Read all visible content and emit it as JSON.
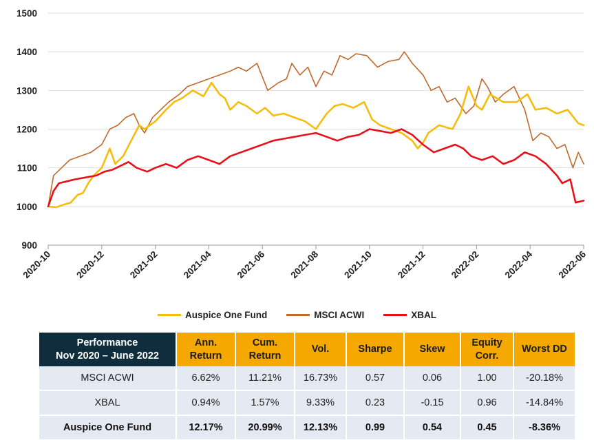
{
  "chart_data": {
    "type": "line",
    "x_labels": [
      "2020-10",
      "2020-12",
      "2021-02",
      "2021-04",
      "2021-06",
      "2021-08",
      "2021-10",
      "2021-12",
      "2022-02",
      "2022-04",
      "2022-06"
    ],
    "ylim": [
      900,
      1500
    ],
    "y_ticks": [
      900,
      1000,
      1100,
      1200,
      1300,
      1400,
      1500
    ],
    "grid": "horizontal",
    "legend_position": "bottom",
    "series": [
      {
        "name": "Auspice One Fund",
        "color": "#f5bd0e",
        "x": [
          0,
          0.15,
          0.3,
          0.42,
          0.55,
          0.65,
          0.75,
          0.85,
          1.0,
          1.15,
          1.25,
          1.4,
          1.55,
          1.7,
          1.8,
          2.0,
          2.2,
          2.35,
          2.5,
          2.7,
          2.9,
          3.05,
          3.2,
          3.3,
          3.4,
          3.55,
          3.7,
          3.9,
          4.05,
          4.2,
          4.4,
          4.6,
          4.8,
          5.0,
          5.2,
          5.35,
          5.5,
          5.7,
          5.9,
          6.05,
          6.2,
          6.4,
          6.6,
          6.8,
          6.9,
          7.0,
          7.1,
          7.3,
          7.55,
          7.7,
          7.85,
          8.0,
          8.1,
          8.25,
          8.5,
          8.75,
          8.95,
          9.1,
          9.3,
          9.5,
          9.7,
          9.9,
          10.0
        ],
        "y": [
          1000,
          998,
          1005,
          1010,
          1030,
          1035,
          1060,
          1080,
          1100,
          1150,
          1110,
          1130,
          1170,
          1210,
          1200,
          1220,
          1250,
          1270,
          1280,
          1300,
          1285,
          1320,
          1290,
          1280,
          1250,
          1270,
          1260,
          1240,
          1255,
          1235,
          1240,
          1230,
          1220,
          1200,
          1240,
          1260,
          1265,
          1255,
          1270,
          1225,
          1210,
          1200,
          1190,
          1170,
          1150,
          1165,
          1190,
          1210,
          1200,
          1240,
          1310,
          1260,
          1250,
          1290,
          1270,
          1270,
          1290,
          1250,
          1255,
          1240,
          1250,
          1215,
          1210
        ]
      },
      {
        "name": "MSCI ACWI",
        "color": "#c0692a",
        "x": [
          0,
          0.1,
          0.25,
          0.4,
          0.6,
          0.8,
          1.0,
          1.15,
          1.3,
          1.45,
          1.6,
          1.7,
          1.8,
          1.95,
          2.1,
          2.25,
          2.45,
          2.6,
          2.8,
          3.0,
          3.2,
          3.4,
          3.55,
          3.7,
          3.9,
          4.1,
          4.3,
          4.45,
          4.55,
          4.7,
          4.85,
          5.0,
          5.15,
          5.3,
          5.45,
          5.6,
          5.75,
          5.95,
          6.15,
          6.35,
          6.55,
          6.65,
          6.8,
          7.0,
          7.15,
          7.3,
          7.45,
          7.6,
          7.8,
          7.95,
          8.1,
          8.2,
          8.35,
          8.5,
          8.7,
          8.9,
          9.05,
          9.2,
          9.35,
          9.5,
          9.65,
          9.8,
          9.9,
          10.0
        ],
        "y": [
          1000,
          1080,
          1100,
          1120,
          1130,
          1140,
          1160,
          1200,
          1210,
          1230,
          1240,
          1210,
          1190,
          1230,
          1250,
          1270,
          1290,
          1310,
          1320,
          1330,
          1340,
          1350,
          1360,
          1350,
          1370,
          1300,
          1320,
          1330,
          1370,
          1340,
          1360,
          1310,
          1350,
          1340,
          1390,
          1380,
          1395,
          1390,
          1360,
          1375,
          1380,
          1400,
          1370,
          1340,
          1300,
          1310,
          1270,
          1280,
          1240,
          1260,
          1330,
          1310,
          1270,
          1290,
          1310,
          1250,
          1170,
          1190,
          1180,
          1150,
          1160,
          1100,
          1140,
          1110
        ]
      },
      {
        "name": "XBAL",
        "color": "#e8111a",
        "x": [
          0,
          0.1,
          0.2,
          0.35,
          0.5,
          0.7,
          0.9,
          1.05,
          1.2,
          1.35,
          1.5,
          1.65,
          1.85,
          2.0,
          2.2,
          2.4,
          2.6,
          2.8,
          3.0,
          3.2,
          3.4,
          3.6,
          3.8,
          4.0,
          4.2,
          4.4,
          4.6,
          4.8,
          5.0,
          5.2,
          5.4,
          5.6,
          5.8,
          6.0,
          6.2,
          6.4,
          6.6,
          6.8,
          7.0,
          7.2,
          7.4,
          7.6,
          7.75,
          7.9,
          8.1,
          8.3,
          8.5,
          8.7,
          8.9,
          9.1,
          9.3,
          9.5,
          9.6,
          9.75,
          9.85,
          10.0
        ],
        "y": [
          1000,
          1040,
          1060,
          1065,
          1070,
          1075,
          1080,
          1090,
          1095,
          1105,
          1115,
          1100,
          1090,
          1100,
          1110,
          1100,
          1120,
          1130,
          1120,
          1110,
          1130,
          1140,
          1150,
          1160,
          1170,
          1175,
          1180,
          1185,
          1190,
          1180,
          1170,
          1180,
          1185,
          1200,
          1195,
          1190,
          1200,
          1185,
          1160,
          1140,
          1150,
          1160,
          1150,
          1130,
          1120,
          1130,
          1110,
          1120,
          1140,
          1130,
          1110,
          1080,
          1060,
          1070,
          1010,
          1015
        ]
      }
    ]
  },
  "table": {
    "headers": [
      {
        "line1": "Performance",
        "line2": "Nov 2020 – June 2022"
      },
      {
        "line1": "Ann.",
        "line2": "Return"
      },
      {
        "line1": "Cum.",
        "line2": "Return"
      },
      {
        "line1": "Vol.",
        "line2": ""
      },
      {
        "line1": "Sharpe",
        "line2": ""
      },
      {
        "line1": "Skew",
        "line2": ""
      },
      {
        "line1": "Equity",
        "line2": "Corr."
      },
      {
        "line1": "Worst DD",
        "line2": ""
      }
    ],
    "rows": [
      [
        "MSCI ACWI",
        "6.62%",
        "11.21%",
        "16.73%",
        "0.57",
        "0.06",
        "1.00",
        "-20.18%"
      ],
      [
        "XBAL",
        "0.94%",
        "1.57%",
        "9.33%",
        "0.23",
        "-0.15",
        "0.96",
        "-14.84%"
      ],
      [
        "Auspice One Fund",
        "12.17%",
        "20.99%",
        "12.13%",
        "0.99",
        "0.54",
        "0.45",
        "-8.36%"
      ]
    ]
  }
}
